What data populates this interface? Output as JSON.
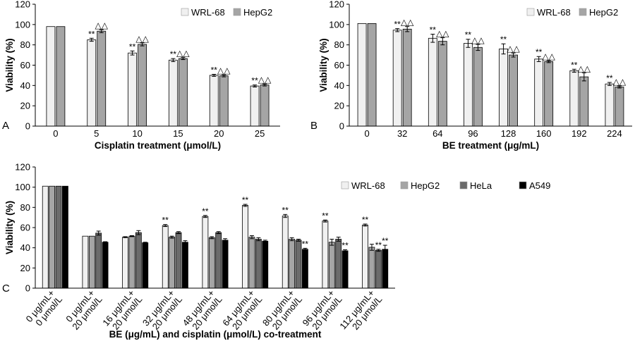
{
  "colors": {
    "WRL-68": "#f0f0f0",
    "HepG2": "#a5a5a5",
    "HeLa": "#6b6b6b",
    "A549": "#000000"
  },
  "chart_data": [
    {
      "panel": "A",
      "type": "bar",
      "xlabel": "Cisplatin treatment (μmol/L)",
      "ylabel": "Viability (%)",
      "ylim": [
        0,
        120
      ],
      "yticks": [
        0,
        20,
        40,
        60,
        80,
        100,
        120
      ],
      "legend_placement": "top-right",
      "grid": false,
      "categories": [
        "0",
        "5",
        "10",
        "15",
        "20",
        "25"
      ],
      "series": [
        {
          "name": "WRL-68",
          "values": [
            98,
            85,
            72,
            65,
            50,
            39.5
          ],
          "errors": [
            0,
            1.5,
            2,
            1.5,
            1,
            1
          ],
          "sig": [
            "",
            "**",
            "**",
            "**",
            "**",
            "**"
          ]
        },
        {
          "name": "HepG2",
          "values": [
            98,
            93.5,
            80.5,
            66.5,
            49.5,
            40.5
          ],
          "errors": [
            0,
            1.5,
            1.5,
            1,
            1,
            1
          ],
          "sig": [
            "",
            "△△",
            "△△",
            "△△",
            "△△",
            "△△"
          ]
        }
      ]
    },
    {
      "panel": "B",
      "type": "bar",
      "xlabel": "BE treatment (μg/mL)",
      "ylabel": "Viability (%)",
      "ylim": [
        0,
        120
      ],
      "yticks": [
        0,
        20,
        40,
        60,
        80,
        100,
        120
      ],
      "legend_placement": "top-right",
      "grid": false,
      "categories": [
        "0",
        "32",
        "64",
        "96",
        "128",
        "160",
        "192",
        "224"
      ],
      "series": [
        {
          "name": "WRL-68",
          "values": [
            101,
            94.5,
            86.5,
            81.5,
            76,
            66,
            54.5,
            41.5
          ],
          "errors": [
            0,
            1.5,
            4,
            4,
            5,
            2.5,
            1.5,
            1.5
          ],
          "sig": [
            "",
            "**",
            "**",
            "**",
            "**",
            "**",
            "**",
            "**"
          ]
        },
        {
          "name": "HepG2",
          "values": [
            101,
            95.5,
            83.5,
            77.5,
            70,
            63.5,
            48.5,
            38.5
          ],
          "errors": [
            0,
            2.5,
            3.5,
            3,
            2,
            1,
            4,
            1
          ],
          "sig": [
            "",
            "△△",
            "△△",
            "△△",
            "△△",
            "△△",
            "△△",
            "△△"
          ]
        }
      ]
    },
    {
      "panel": "C",
      "type": "bar",
      "xlabel": "BE (μg/mL) and cisplatin (μmol/L) co-treatment",
      "ylabel": "Viability (%)",
      "ylim": [
        0,
        120
      ],
      "yticks": [
        0,
        20,
        40,
        60,
        80,
        100,
        120
      ],
      "legend_placement": "top-right",
      "grid": false,
      "categories": [
        [
          "0 μg/mL+",
          "0 μmol/L"
        ],
        [
          "0 μg/mL+",
          "20 μmol/L"
        ],
        [
          "16 μg/mL+",
          "20 μmol/L"
        ],
        [
          "32 μg/mL+",
          "20 μmol/L"
        ],
        [
          "48 μg/mL+",
          "20 μmol/L"
        ],
        [
          "64 μg/mL+",
          "20 μmol/L"
        ],
        [
          "80 μg/mL+",
          "20 μmol/L"
        ],
        [
          "96 μg/mL+",
          "20 μmol/L"
        ],
        [
          "112 μg/mL+",
          "20 μmol/L"
        ]
      ],
      "series": [
        {
          "name": "WRL-68",
          "values": [
            101,
            51.5,
            50.5,
            62,
            71,
            82,
            71.5,
            66.5,
            62.5
          ],
          "errors": [
            0,
            0,
            0.5,
            1,
            1,
            1,
            1.5,
            1,
            1
          ],
          "sig": [
            "",
            "",
            "",
            "**",
            "**",
            "**",
            "**",
            "**",
            "**"
          ]
        },
        {
          "name": "HepG2",
          "values": [
            101,
            51.5,
            51.5,
            50.5,
            50,
            50.5,
            48.5,
            45.5,
            40.5
          ],
          "errors": [
            0,
            0,
            0.5,
            1,
            1,
            1.5,
            1.5,
            3,
            3
          ],
          "sig": [
            "",
            "",
            "",
            "",
            "",
            "",
            "",
            "",
            ""
          ]
        },
        {
          "name": "HeLa",
          "values": [
            101,
            54.5,
            55,
            55,
            55,
            48.5,
            47.5,
            48.5,
            37.5
          ],
          "errors": [
            0,
            2,
            2,
            1,
            1,
            1.5,
            1,
            2,
            1
          ],
          "sig": [
            "",
            "",
            "",
            "",
            "",
            "",
            "",
            "",
            "**"
          ]
        },
        {
          "name": "A549",
          "values": [
            101,
            45.5,
            45,
            45.5,
            47.5,
            46.5,
            38.5,
            37,
            38.5
          ],
          "errors": [
            0,
            0.5,
            0.5,
            1.5,
            1.5,
            1,
            1,
            1,
            4
          ],
          "sig": [
            "",
            "",
            "",
            "",
            "",
            "",
            "**",
            "**",
            "**"
          ]
        }
      ]
    }
  ]
}
